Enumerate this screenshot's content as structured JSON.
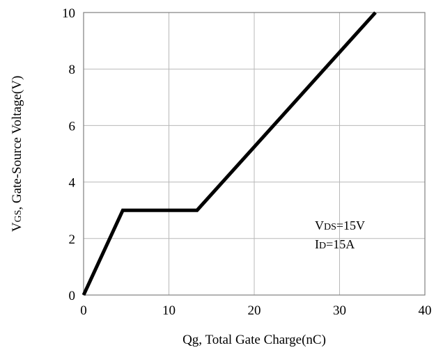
{
  "chart_data": {
    "type": "line",
    "xlabel": "Qg, Total Gate Charge(nC)",
    "ylabel": "VGS, Gate-Source Voltage(V)",
    "ylabel_parts": {
      "main": "V",
      "sub": "GS",
      "rest": ", Gate-Source Voltage(V)"
    },
    "xlim": [
      0,
      40
    ],
    "ylim": [
      0,
      10
    ],
    "x_ticks": [
      0,
      10,
      20,
      30,
      40
    ],
    "y_ticks": [
      0,
      2,
      4,
      6,
      8,
      10
    ],
    "grid": true,
    "line_color": "#000000",
    "series": [
      {
        "x": [
          0,
          4.6,
          13.3,
          34.2
        ],
        "y": [
          0,
          3.0,
          3.0,
          10.0
        ]
      }
    ],
    "annotations": [
      {
        "main": "V",
        "sub": "DS",
        "rest": "=15V"
      },
      {
        "main": "I",
        "sub": "D",
        "rest": "=15A"
      }
    ]
  }
}
